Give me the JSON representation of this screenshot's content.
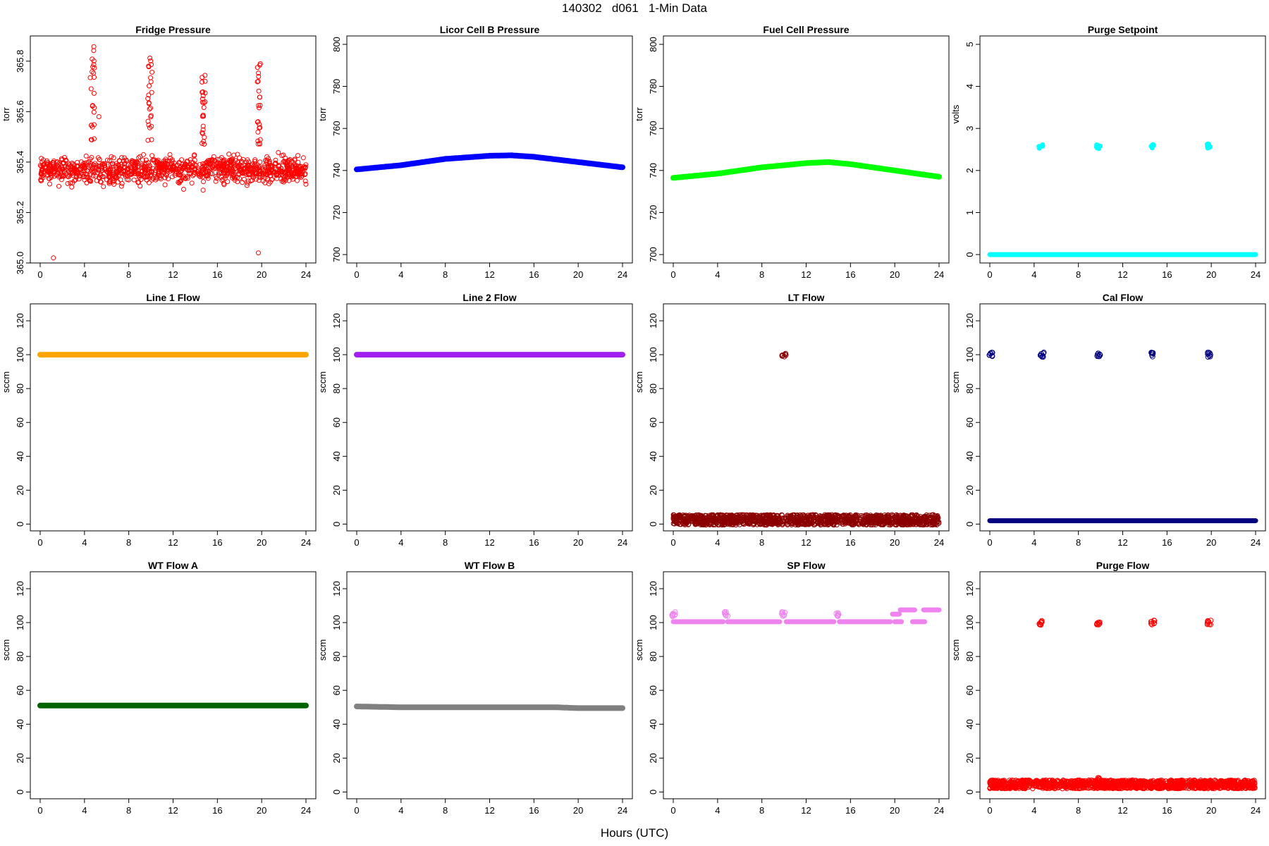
{
  "figure": {
    "title": "140302   d061   1-Min Data",
    "xlabel": "Hours (UTC)"
  },
  "chart_data": [
    {
      "type": "scatter",
      "title": "Fridge Pressure",
      "ylabel": "torr",
      "xlim": [
        0,
        24
      ],
      "ylim": [
        365.0,
        365.9
      ],
      "yticks": [
        "365.0",
        "365.2",
        "365.4",
        "365.6",
        "365.8"
      ],
      "xticks": [
        "0",
        "4",
        "8",
        "12",
        "16",
        "20",
        "24"
      ],
      "marker": "open-circle",
      "color": "#ff0000",
      "series": [
        {
          "x": [
            0,
            24
          ],
          "y_mean": 365.37,
          "y_spread": 0.09,
          "outliers": [
            {
              "x": 1.2,
              "y": 365.02
            },
            {
              "x": 19.7,
              "y": 365.04
            },
            {
              "x": 5.3,
              "y": 365.58
            }
          ],
          "spikes": [
            {
              "x_start": 4.5,
              "x_end": 4.9,
              "y_peak": 365.86
            },
            {
              "x_start": 9.7,
              "x_end": 10.1,
              "y_peak": 365.82
            },
            {
              "x_start": 14.6,
              "x_end": 14.9,
              "y_peak": 365.82
            },
            {
              "x_start": 19.6,
              "x_end": 19.9,
              "y_peak": 365.8
            }
          ]
        }
      ]
    },
    {
      "type": "scatter",
      "title": "Licor Cell B Pressure",
      "ylabel": "torr",
      "xlim": [
        0,
        24
      ],
      "ylim": [
        696,
        804
      ],
      "yticks": [
        "700",
        "720",
        "740",
        "760",
        "780",
        "800"
      ],
      "xticks": [
        "0",
        "4",
        "8",
        "12",
        "16",
        "20",
        "24"
      ],
      "marker": "filled-circle",
      "color": "#0000ff",
      "series": [
        {
          "x": [
            0,
            4,
            8,
            12,
            14,
            16,
            20,
            24
          ],
          "y": [
            740.5,
            742.5,
            745.5,
            747.0,
            747.2,
            746.5,
            744.0,
            741.5
          ]
        }
      ]
    },
    {
      "type": "scatter",
      "title": "Fuel Cell Pressure",
      "ylabel": "torr",
      "xlim": [
        0,
        24
      ],
      "ylim": [
        696,
        804
      ],
      "yticks": [
        "700",
        "720",
        "740",
        "760",
        "780",
        "800"
      ],
      "xticks": [
        "0",
        "4",
        "8",
        "12",
        "16",
        "20",
        "24"
      ],
      "marker": "filled-circle",
      "color": "#00ff00",
      "series": [
        {
          "x": [
            0,
            4,
            8,
            12,
            14,
            16,
            20,
            24
          ],
          "y": [
            736.5,
            738.5,
            741.5,
            743.5,
            744.0,
            743.0,
            740.0,
            737.0
          ]
        }
      ]
    },
    {
      "type": "scatter",
      "title": "Purge Setpoint",
      "ylabel": "volts",
      "xlim": [
        0,
        24
      ],
      "ylim": [
        -0.2,
        5.2
      ],
      "yticks": [
        "0",
        "1",
        "2",
        "3",
        "4",
        "5"
      ],
      "xticks": [
        "0",
        "4",
        "8",
        "12",
        "16",
        "20",
        "24"
      ],
      "marker": "filled-circle",
      "color": "#00ffff",
      "series": [
        {
          "baseline": 0.0,
          "clusters": [
            {
              "x": 4.6,
              "y": 2.57
            },
            {
              "x": 9.8,
              "y": 2.57
            },
            {
              "x": 14.7,
              "y": 2.57
            },
            {
              "x": 19.8,
              "y": 2.58
            }
          ]
        }
      ]
    },
    {
      "type": "scatter",
      "title": "Line 1 Flow",
      "ylabel": "sccm",
      "xlim": [
        0,
        24
      ],
      "ylim": [
        -4,
        130
      ],
      "yticks": [
        "0",
        "20",
        "40",
        "60",
        "80",
        "100",
        "120"
      ],
      "xticks": [
        "0",
        "4",
        "8",
        "12",
        "16",
        "20",
        "24"
      ],
      "marker": "filled-circle",
      "color": "#ffa500",
      "series": [
        {
          "x": [
            0,
            24
          ],
          "y": [
            100,
            100
          ]
        }
      ]
    },
    {
      "type": "scatter",
      "title": "Line 2 Flow",
      "ylabel": "sccm",
      "xlim": [
        0,
        24
      ],
      "ylim": [
        -4,
        130
      ],
      "yticks": [
        "0",
        "20",
        "40",
        "60",
        "80",
        "100",
        "120"
      ],
      "xticks": [
        "0",
        "4",
        "8",
        "12",
        "16",
        "20",
        "24"
      ],
      "marker": "filled-circle",
      "color": "#a020f0",
      "series": [
        {
          "x": [
            0,
            24
          ],
          "y": [
            100,
            100
          ]
        }
      ]
    },
    {
      "type": "scatter",
      "title": "LT Flow",
      "ylabel": "sccm",
      "xlim": [
        0,
        24
      ],
      "ylim": [
        -4,
        130
      ],
      "yticks": [
        "0",
        "20",
        "40",
        "60",
        "80",
        "100",
        "120"
      ],
      "xticks": [
        "0",
        "4",
        "8",
        "12",
        "16",
        "20",
        "24"
      ],
      "marker": "open-circle",
      "color": "#8b0000",
      "series": [
        {
          "baseline": 2.5,
          "y_spread": 3.0,
          "gap": [
            9.9,
            10.2
          ],
          "clusters": [
            {
              "x": 10.0,
              "y": 100
            }
          ]
        }
      ]
    },
    {
      "type": "scatter",
      "title": "Cal Flow",
      "ylabel": "sccm",
      "xlim": [
        0,
        24
      ],
      "ylim": [
        -4,
        130
      ],
      "yticks": [
        "0",
        "20",
        "40",
        "60",
        "80",
        "100",
        "120"
      ],
      "xticks": [
        "0",
        "4",
        "8",
        "12",
        "16",
        "20",
        "24"
      ],
      "marker": "open-circle",
      "color": "#000080",
      "series": [
        {
          "baseline": 2.0,
          "clusters": [
            {
              "x": 0.1,
              "y": 100
            },
            {
              "x": 4.7,
              "y": 100
            },
            {
              "x": 9.8,
              "y": 100
            },
            {
              "x": 14.7,
              "y": 100
            },
            {
              "x": 19.8,
              "y": 100
            }
          ]
        }
      ]
    },
    {
      "type": "scatter",
      "title": "WT Flow A",
      "ylabel": "sccm",
      "xlim": [
        0,
        24
      ],
      "ylim": [
        -4,
        130
      ],
      "yticks": [
        "0",
        "20",
        "40",
        "60",
        "80",
        "100",
        "120"
      ],
      "xticks": [
        "0",
        "4",
        "8",
        "12",
        "16",
        "20",
        "24"
      ],
      "marker": "filled-circle",
      "color": "#006400",
      "series": [
        {
          "x": [
            0,
            24
          ],
          "y": [
            51,
            51
          ]
        }
      ]
    },
    {
      "type": "scatter",
      "title": "WT Flow B",
      "ylabel": "sccm",
      "xlim": [
        0,
        24
      ],
      "ylim": [
        -4,
        130
      ],
      "yticks": [
        "0",
        "20",
        "40",
        "60",
        "80",
        "100",
        "120"
      ],
      "xticks": [
        "0",
        "4",
        "8",
        "12",
        "16",
        "20",
        "24"
      ],
      "marker": "filled-circle",
      "color": "#808080",
      "series": [
        {
          "x": [
            0,
            4,
            12,
            18,
            20,
            24
          ],
          "y": [
            50.5,
            50.0,
            50.0,
            50.0,
            49.5,
            49.5
          ]
        }
      ]
    },
    {
      "type": "scatter",
      "title": "SP Flow",
      "ylabel": "sccm",
      "xlim": [
        0,
        24
      ],
      "ylim": [
        -4,
        130
      ],
      "yticks": [
        "0",
        "20",
        "40",
        "60",
        "80",
        "100",
        "120"
      ],
      "xticks": [
        "0",
        "4",
        "8",
        "12",
        "16",
        "20",
        "24"
      ],
      "marker": "open-circle",
      "color": "#ee82ee",
      "series": [
        {
          "baseline": 100.5,
          "segments": [
            {
              "x_start": 0.0,
              "x_end": 4.5,
              "y": 100.5
            },
            {
              "x_start": 4.9,
              "x_end": 9.6,
              "y": 100.5
            },
            {
              "x_start": 10.2,
              "x_end": 14.5,
              "y": 100.5
            },
            {
              "x_start": 15.0,
              "x_end": 19.6,
              "y": 100.5
            },
            {
              "x_start": 20.0,
              "x_end": 20.6,
              "y": 100.5
            },
            {
              "x_start": 21.6,
              "x_end": 22.7,
              "y": 100.5
            },
            {
              "x_start": 19.8,
              "x_end": 20.4,
              "y": 105.0
            },
            {
              "x_start": 20.5,
              "x_end": 21.8,
              "y": 107.5
            },
            {
              "x_start": 22.6,
              "x_end": 24.0,
              "y": 107.5
            }
          ],
          "clusters": [
            {
              "x": 0.0,
              "y": 105
            },
            {
              "x": 4.8,
              "y": 105
            },
            {
              "x": 9.9,
              "y": 105
            },
            {
              "x": 14.8,
              "y": 105
            }
          ]
        }
      ]
    },
    {
      "type": "scatter",
      "title": "Purge Flow",
      "ylabel": "sccm",
      "xlim": [
        0,
        24
      ],
      "ylim": [
        -4,
        130
      ],
      "yticks": [
        "0",
        "20",
        "40",
        "60",
        "80",
        "100",
        "120"
      ],
      "xticks": [
        "0",
        "4",
        "8",
        "12",
        "16",
        "20",
        "24"
      ],
      "marker": "open-circle",
      "color": "#ff0000",
      "series": [
        {
          "baseline": 4.5,
          "y_spread": 2.5,
          "bump": {
            "x": 9.9,
            "y": 8.5
          },
          "clusters": [
            {
              "x": 4.6,
              "y": 100
            },
            {
              "x": 9.8,
              "y": 100
            },
            {
              "x": 14.7,
              "y": 100
            },
            {
              "x": 19.8,
              "y": 100
            }
          ]
        }
      ]
    }
  ]
}
